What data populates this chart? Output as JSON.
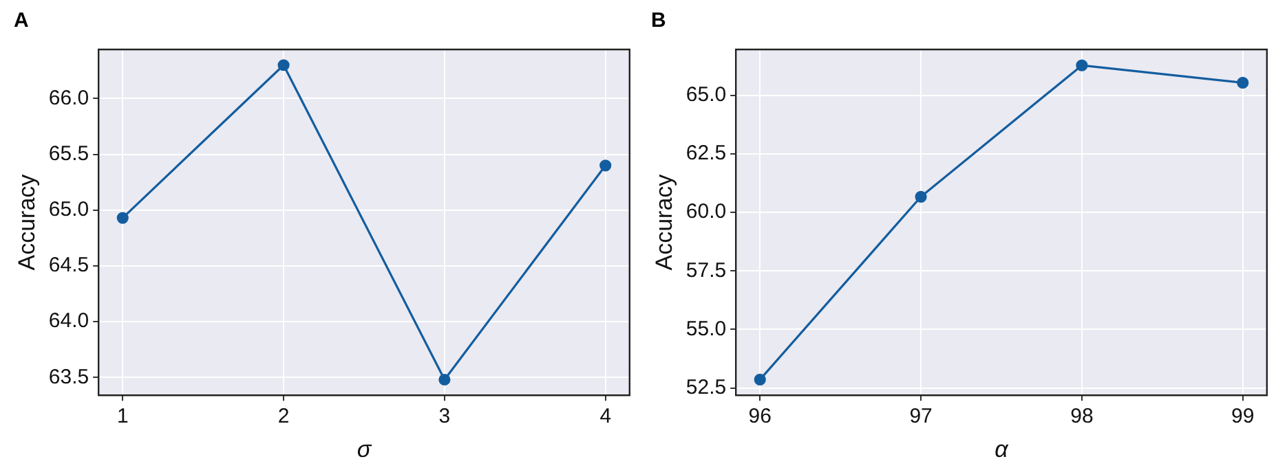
{
  "chart_data": [
    {
      "type": "line",
      "title": "A",
      "xlabel": "σ",
      "ylabel": "Accuracy",
      "x": [
        1,
        2,
        3,
        4
      ],
      "values": [
        64.93,
        66.3,
        63.48,
        65.4
      ],
      "color": "#135d9f",
      "xlim": [
        0.85,
        4.15
      ],
      "ylim": [
        63.34,
        66.44
      ],
      "xticks": [
        1,
        2,
        3,
        4
      ],
      "yticks": [
        {
          "value": 63.5,
          "label": "63.5"
        },
        {
          "value": 64,
          "label": "64.0"
        },
        {
          "value": 64.5,
          "label": "64.5"
        },
        {
          "value": 65,
          "label": "65.0"
        },
        {
          "value": 65.5,
          "label": "65.5"
        },
        {
          "value": 66,
          "label": "66.0"
        }
      ],
      "grid": true,
      "marker": "circle"
    },
    {
      "type": "line",
      "title": "B",
      "xlabel": "α",
      "ylabel": "Accuracy",
      "x": [
        96,
        97,
        98,
        99
      ],
      "values": [
        52.86,
        60.67,
        66.28,
        65.54
      ],
      "color": "#135d9f",
      "xlim": [
        95.85,
        99.15
      ],
      "ylim": [
        52.19,
        66.96
      ],
      "xticks": [
        96,
        97,
        98,
        99
      ],
      "yticks": [
        52.5,
        {
          "value": 55,
          "label": "55.0"
        },
        57.5,
        {
          "value": 60,
          "label": "60.0"
        },
        62.5,
        {
          "value": 65,
          "label": "65.0"
        }
      ],
      "grid": true,
      "marker": "circle"
    }
  ]
}
